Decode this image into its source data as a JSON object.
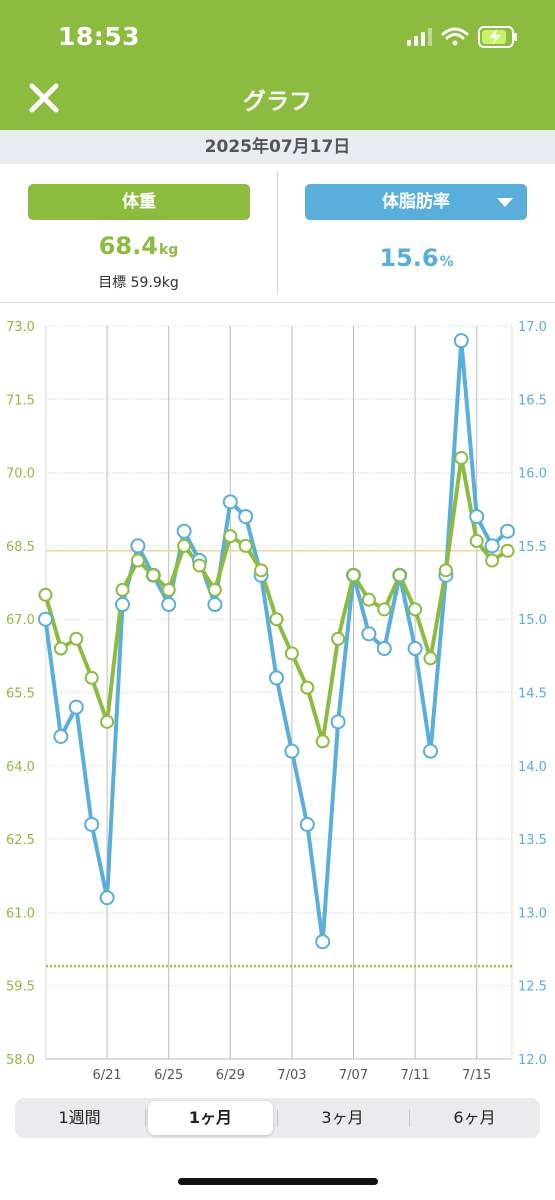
{
  "status_bar": {
    "time": "18:53",
    "icons": [
      "cellular-signal-icon",
      "wifi-icon",
      "battery-charging-icon"
    ]
  },
  "nav": {
    "title": "グラフ",
    "close_icon": "close-icon"
  },
  "date": "2025年07月17日",
  "weight": {
    "label": "体重",
    "value": "68.4",
    "unit": "kg",
    "goal": "目標 59.9kg"
  },
  "body_fat": {
    "label": "体脂肪率",
    "value": "15.6",
    "unit": "%"
  },
  "colors": {
    "weight": "#8cbc3f",
    "body_fat": "#5aaedb",
    "header": "#8cbc3f",
    "goal_line": "#9bc34a",
    "current_line": "#f0d39a"
  },
  "chart_data": {
    "type": "line",
    "x_labels": [
      "6/21",
      "6/25",
      "6/29",
      "7/03",
      "7/07",
      "7/11",
      "7/15"
    ],
    "y_left": {
      "ticks": [
        "73.0",
        "71.5",
        "70.0",
        "68.5",
        "67.0",
        "65.5",
        "64.0",
        "62.5",
        "61.0",
        "59.5",
        "58.0"
      ],
      "range": [
        58.0,
        73.0
      ]
    },
    "y_right": {
      "ticks": [
        "17.0",
        "16.5",
        "16.0",
        "15.5",
        "15.0",
        "14.5",
        "14.0",
        "13.5",
        "13.0",
        "12.5",
        "12.0"
      ],
      "range": [
        12.0,
        17.0
      ]
    },
    "goal_weight": 59.9,
    "current_weight": 68.4,
    "series": [
      {
        "name": "体重",
        "days": [
          1,
          2,
          3,
          4,
          5,
          6,
          7,
          8,
          9,
          10,
          11,
          12,
          13,
          14,
          15,
          16,
          17,
          18,
          19,
          20,
          21,
          22,
          23,
          24,
          25,
          26,
          27,
          28,
          29,
          30,
          31
        ],
        "values": [
          67.5,
          66.4,
          66.6,
          65.8,
          64.9,
          67.6,
          68.2,
          67.9,
          67.6,
          68.5,
          68.1,
          67.6,
          68.7,
          68.5,
          68.0,
          67.0,
          66.3,
          65.6,
          64.5,
          66.6,
          67.9,
          67.4,
          67.2,
          67.9,
          67.2,
          66.2,
          68.0,
          70.3,
          68.6,
          68.2,
          68.4
        ]
      },
      {
        "name": "体脂肪率",
        "days": [
          1,
          2,
          3,
          4,
          5,
          6,
          7,
          8,
          9,
          10,
          11,
          12,
          13,
          14,
          15,
          16,
          17,
          18,
          19,
          20,
          21,
          22,
          23,
          24,
          25,
          26,
          27,
          28,
          29,
          30,
          31
        ],
        "values": [
          15.0,
          14.2,
          14.4,
          13.6,
          13.1,
          15.1,
          15.5,
          15.3,
          15.1,
          15.6,
          15.4,
          15.1,
          15.8,
          15.7,
          15.3,
          14.6,
          14.1,
          13.6,
          12.8,
          14.3,
          15.3,
          14.9,
          14.8,
          15.3,
          14.8,
          14.1,
          15.3,
          16.9,
          15.7,
          15.5,
          15.6
        ]
      }
    ]
  },
  "periods": [
    {
      "label": "1週間",
      "active": false
    },
    {
      "label": "1ヶ月",
      "active": true
    },
    {
      "label": "3ヶ月",
      "active": false
    },
    {
      "label": "6ヶ月",
      "active": false
    }
  ]
}
